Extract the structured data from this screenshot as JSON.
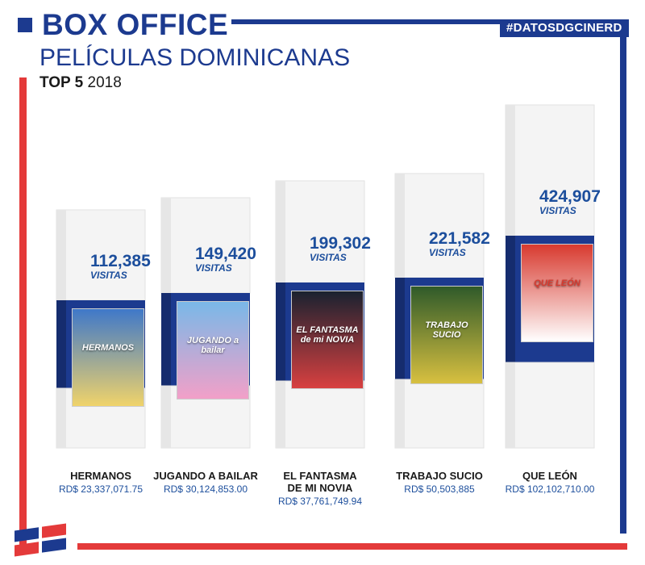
{
  "header": {
    "title": "BOX OFFICE",
    "subtitle": "PELÍCULAS DOMINICANAS",
    "top_label": "TOP 5",
    "year": "2018",
    "hashtag": "#DATOSDGCINERD"
  },
  "colors": {
    "primary": "#1c3a8f",
    "accent": "#e43a3a",
    "value_text": "#1c4e9c"
  },
  "chart_data": {
    "type": "bar",
    "categories": [
      "HERMANOS",
      "JUGANDO A BAILAR",
      "EL FANTASMA DE MI NOVIA",
      "TRABAJO SUCIO",
      "QUE LEÓN"
    ],
    "values": [
      112385,
      149420,
      199302,
      221582,
      424907
    ],
    "value_labels": [
      "112,385",
      "149,420",
      "199,302",
      "221,582",
      "424,907"
    ],
    "value_unit": "VISITAS",
    "revenue": [
      "RD$ 23,337,071.75",
      "RD$ 30,124,853.00",
      "RD$ 37,761,749.94",
      "RD$ 50,503,885",
      "RD$ 102,102,710.00"
    ],
    "label_lines": [
      [
        "HERMANOS"
      ],
      [
        "JUGANDO A BAILAR"
      ],
      [
        "EL FANTASMA",
        "DE MI NOVIA"
      ],
      [
        "TRABAJO SUCIO"
      ],
      [
        "QUE LEÓN"
      ]
    ]
  },
  "posters": {
    "p0": "HERMANOS",
    "p1": "JUGANDO a bailar",
    "p2": "EL FANTASMA de mi NOVIA",
    "p3": "TRABAJO SUCIO",
    "p4": "QUE LEÓN"
  }
}
